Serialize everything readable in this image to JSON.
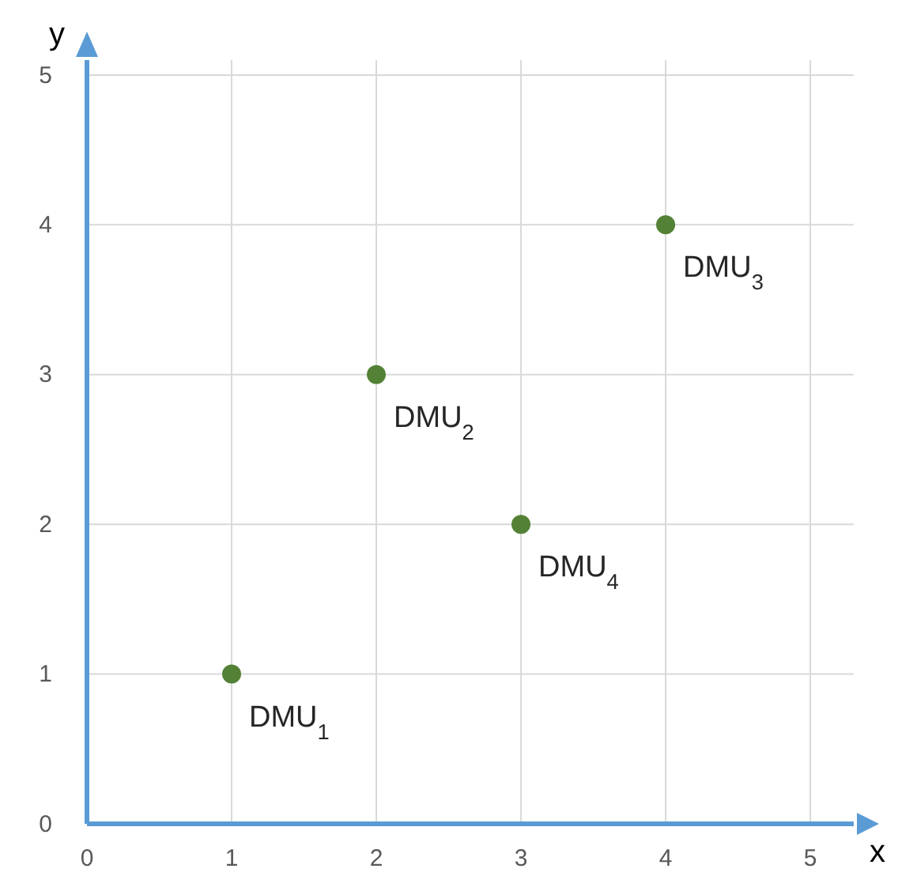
{
  "chart_data": {
    "type": "scatter",
    "xlabel": "x",
    "ylabel": "y",
    "x": [
      1,
      2,
      4,
      3
    ],
    "values": [
      1,
      3,
      4,
      2
    ],
    "color": "#538135",
    "marker": "circle",
    "xlim": [
      0,
      5.3
    ],
    "ylim": [
      0,
      5.1
    ],
    "xticks": [
      0,
      1,
      2,
      3,
      4,
      5
    ],
    "yticks": [
      0,
      1,
      2,
      3,
      4,
      5
    ],
    "grid": true,
    "annotations": [
      {
        "text": "DMU$_{1}$",
        "x": 1,
        "y": 1
      },
      {
        "text": "DMU$_{2}$",
        "x": 2,
        "y": 3
      },
      {
        "text": "DMU$_{3}$",
        "x": 4,
        "y": 4
      },
      {
        "text": "DMU$_{4}$",
        "x": 3,
        "y": 2
      }
    ]
  }
}
